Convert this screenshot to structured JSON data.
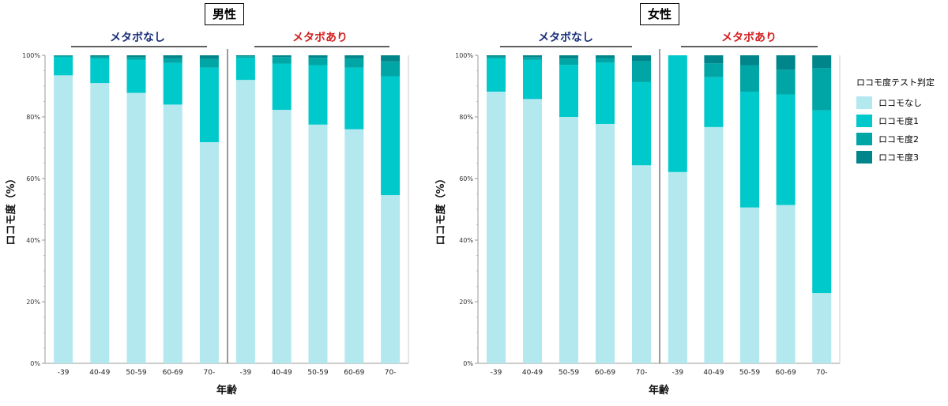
{
  "panels": [
    {
      "title": "男性",
      "groups": [
        {
          "label": "メタボなし",
          "color": "#1a2f7a"
        },
        {
          "label": "メタボあり",
          "color": "#d32020"
        }
      ]
    },
    {
      "title": "女性",
      "groups": [
        {
          "label": "メタボなし",
          "color": "#1a2f7a"
        },
        {
          "label": "メタボあり",
          "color": "#d32020"
        }
      ]
    }
  ],
  "legend": {
    "title": "ロコモ度テスト判定",
    "items": [
      {
        "label": "ロコモなし",
        "color": "#b3e8ef"
      },
      {
        "label": "ロコモ度1",
        "color": "#00c9cc"
      },
      {
        "label": "ロコモ度2",
        "color": "#00a6a6"
      },
      {
        "label": "ロコモ度3",
        "color": "#00858a"
      }
    ]
  },
  "chart_data": [
    {
      "type": "bar",
      "stacked": true,
      "title": "男性",
      "xlabel": "年齢",
      "ylabel": "ロコモ度（%）",
      "ylim": [
        0,
        100
      ],
      "yticks": [
        "0%",
        "20%",
        "40%",
        "60%",
        "80%",
        "100%"
      ],
      "categories": [
        "-39",
        "40-49",
        "50-59",
        "60-69",
        "70-",
        "-39",
        "40-49",
        "50-59",
        "60-69",
        "70-"
      ],
      "group_labels": [
        "メタボなし",
        "メタボあり"
      ],
      "series": [
        {
          "name": "ロコモなし",
          "values": [
            93.5,
            91,
            87.8,
            84,
            71.8,
            92,
            82.3,
            77.5,
            76,
            54.6
          ]
        },
        {
          "name": "ロコモ度1",
          "values": [
            6,
            8,
            10.8,
            13.5,
            24.2,
            7.2,
            15,
            19.3,
            20,
            38.6
          ]
        },
        {
          "name": "ロコモ度2",
          "values": [
            0.3,
            0.6,
            0.8,
            1.5,
            2.8,
            0.5,
            2.1,
            2.4,
            3,
            4.8
          ]
        },
        {
          "name": "ロコモ度3",
          "values": [
            0.2,
            0.4,
            0.6,
            1,
            1.2,
            0.3,
            0.6,
            0.8,
            1,
            2
          ]
        }
      ]
    },
    {
      "type": "bar",
      "stacked": true,
      "title": "女性",
      "xlabel": "年齢",
      "ylabel": "ロコモ度（%）",
      "ylim": [
        0,
        100
      ],
      "yticks": [
        "0%",
        "20%",
        "40%",
        "60%",
        "80%",
        "100%"
      ],
      "categories": [
        "-39",
        "40-49",
        "50-59",
        "60-69",
        "70-",
        "-39",
        "40-49",
        "50-59",
        "60-69",
        "70-"
      ],
      "group_labels": [
        "メタボなし",
        "メタボあり"
      ],
      "series": [
        {
          "name": "ロコモなし",
          "values": [
            88.2,
            85.8,
            80,
            77.7,
            64.3,
            62.1,
            76.7,
            50.6,
            51.4,
            22.8
          ]
        },
        {
          "name": "ロコモ度1",
          "values": [
            10.8,
            12.7,
            16.9,
            19.9,
            27,
            37.9,
            16.2,
            37.6,
            35.9,
            59.3
          ]
        },
        {
          "name": "ロコモ度2",
          "values": [
            0.6,
            0.9,
            2,
            1.5,
            6.8,
            0,
            4.5,
            8.6,
            8,
            13.7
          ]
        },
        {
          "name": "ロコモ度3",
          "values": [
            0.4,
            0.6,
            1.1,
            0.9,
            1.9,
            0,
            2.6,
            3.2,
            4.7,
            4.2
          ]
        }
      ]
    }
  ]
}
